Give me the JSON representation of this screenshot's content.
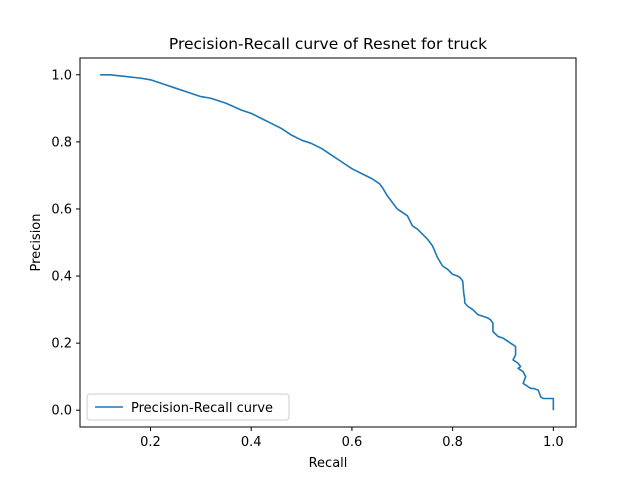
{
  "chart_data": {
    "type": "line",
    "title": "Precision-Recall curve of Resnet for truck",
    "xlabel": "Recall",
    "ylabel": "Precision",
    "xlim": [
      0.06,
      1.045
    ],
    "ylim": [
      -0.05,
      1.05
    ],
    "xticks": [
      0.2,
      0.4,
      0.6,
      0.8,
      1.0
    ],
    "xtick_labels": [
      "0.2",
      "0.4",
      "0.6",
      "0.8",
      "1.0"
    ],
    "yticks": [
      0.0,
      0.2,
      0.4,
      0.6,
      0.8,
      1.0
    ],
    "ytick_labels": [
      "0.0",
      "0.2",
      "0.4",
      "0.6",
      "0.8",
      "1.0"
    ],
    "grid": false,
    "legend_position": "lower-left",
    "line_color": "#1f77b4",
    "series": [
      {
        "name": "Precision-Recall curve",
        "x": [
          0.1,
          0.12,
          0.15,
          0.18,
          0.2,
          0.22,
          0.25,
          0.28,
          0.3,
          0.32,
          0.35,
          0.38,
          0.4,
          0.42,
          0.44,
          0.46,
          0.48,
          0.5,
          0.52,
          0.54,
          0.56,
          0.58,
          0.6,
          0.62,
          0.64,
          0.655,
          0.66,
          0.67,
          0.68,
          0.69,
          0.7,
          0.71,
          0.72,
          0.73,
          0.74,
          0.75,
          0.76,
          0.77,
          0.78,
          0.79,
          0.8,
          0.81,
          0.815,
          0.82,
          0.822,
          0.824,
          0.824,
          0.83,
          0.84,
          0.85,
          0.86,
          0.87,
          0.875,
          0.88,
          0.88,
          0.89,
          0.9,
          0.91,
          0.92,
          0.925,
          0.925,
          0.92,
          0.93,
          0.935,
          0.93,
          0.94,
          0.945,
          0.94,
          0.945,
          0.95,
          0.955,
          0.96,
          0.97,
          0.975,
          0.98,
          0.99,
          1.0,
          1.0
        ],
        "y": [
          1.0,
          1.0,
          0.995,
          0.99,
          0.985,
          0.975,
          0.96,
          0.945,
          0.935,
          0.93,
          0.915,
          0.895,
          0.885,
          0.87,
          0.855,
          0.84,
          0.82,
          0.805,
          0.795,
          0.78,
          0.76,
          0.74,
          0.72,
          0.705,
          0.69,
          0.675,
          0.665,
          0.64,
          0.62,
          0.6,
          0.59,
          0.58,
          0.55,
          0.54,
          0.525,
          0.51,
          0.49,
          0.455,
          0.43,
          0.42,
          0.405,
          0.4,
          0.395,
          0.385,
          0.35,
          0.33,
          0.32,
          0.31,
          0.3,
          0.285,
          0.28,
          0.275,
          0.27,
          0.26,
          0.235,
          0.22,
          0.215,
          0.205,
          0.195,
          0.19,
          0.165,
          0.15,
          0.14,
          0.13,
          0.125,
          0.115,
          0.1,
          0.08,
          0.075,
          0.07,
          0.065,
          0.065,
          0.06,
          0.04,
          0.035,
          0.035,
          0.035,
          0.0
        ]
      }
    ]
  }
}
